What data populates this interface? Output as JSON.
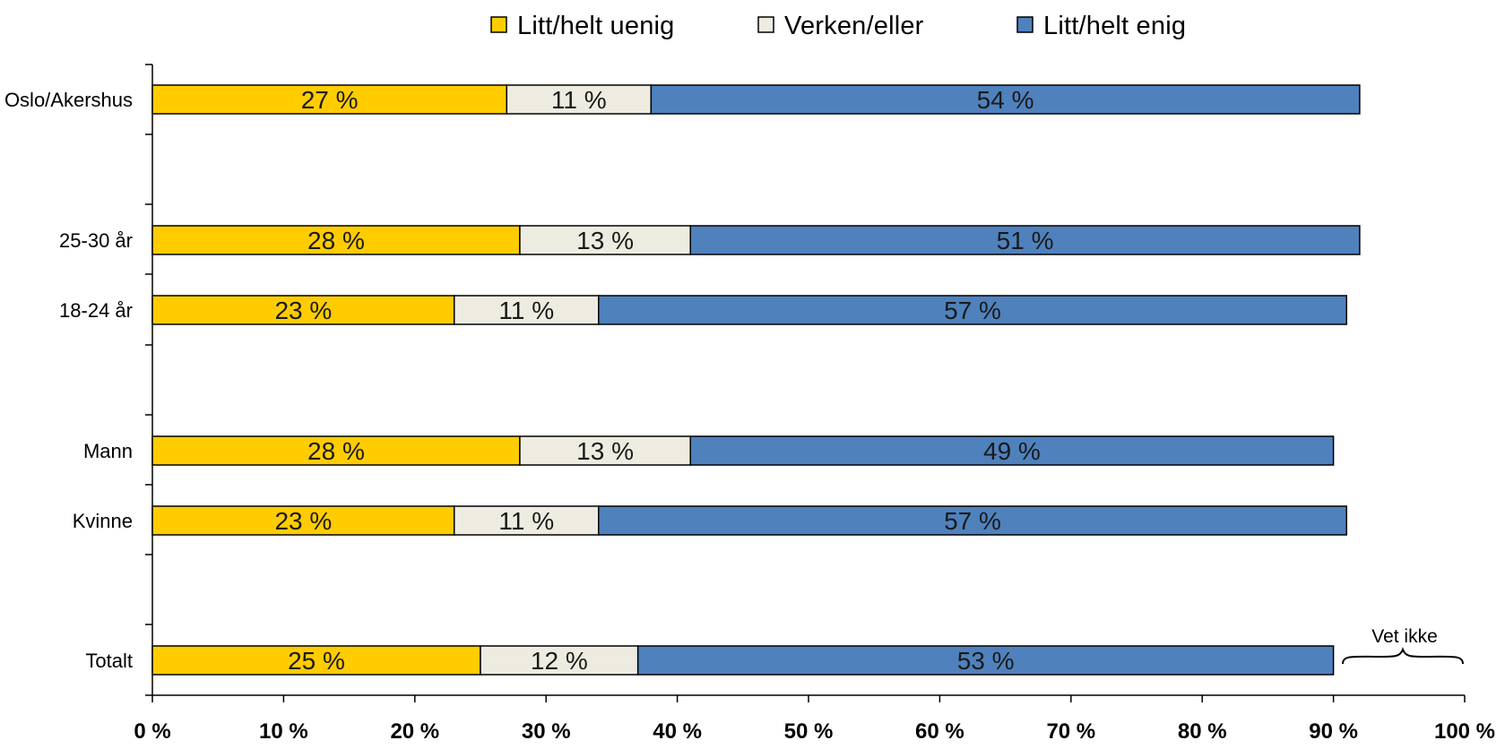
{
  "chart_data": {
    "type": "bar",
    "orientation": "horizontal",
    "stacked": true,
    "categories": [
      "Oslo/Akershus",
      "25-30 år",
      "18-24 år",
      "Mann",
      "Kvinne",
      "Totalt"
    ],
    "series": [
      {
        "name": "Litt/helt uenig",
        "color": "#FFCC00",
        "values": [
          27,
          28,
          23,
          28,
          23,
          25
        ]
      },
      {
        "name": "Verken/eller",
        "color": "#EEECE1",
        "values": [
          11,
          13,
          11,
          13,
          11,
          12
        ]
      },
      {
        "name": "Litt/helt enig",
        "color": "#4F81BD",
        "values": [
          54,
          51,
          57,
          49,
          57,
          53
        ]
      }
    ],
    "data_labels": [
      [
        "27 %",
        "28 %",
        "23 %",
        "28 %",
        "23 %",
        "25 %"
      ],
      [
        "11 %",
        "13 %",
        "11 %",
        "13 %",
        "11 %",
        "12 %"
      ],
      [
        "54 %",
        "51 %",
        "57 %",
        "49 %",
        "57 %",
        "53 %"
      ]
    ],
    "x_ticks": [
      "0 %",
      "10 %",
      "20 %",
      "30 %",
      "40 %",
      "50 %",
      "60 %",
      "70 %",
      "80 %",
      "90 %",
      "100 %"
    ],
    "xlim": [
      0,
      100
    ],
    "grid": false,
    "legend_position": "top",
    "annotation": "Vet ikke"
  }
}
